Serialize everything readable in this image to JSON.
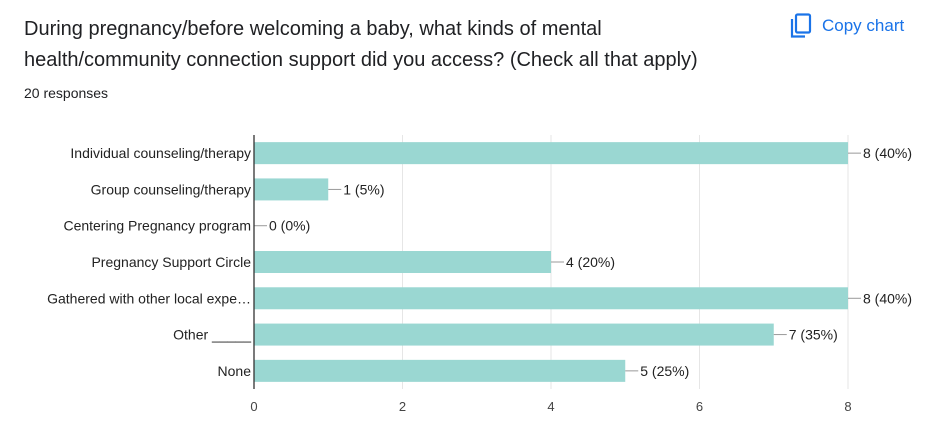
{
  "question": "During pregnancy/before welcoming a baby, what kinds of mental health/community connection support did you access? (Check all that apply)",
  "responses": "20 responses",
  "copy_label": "Copy chart",
  "icons": {
    "copy": "copy-icon"
  },
  "colors": {
    "bar": "#9ad7d2",
    "accent": "#1a73e8",
    "grid": "#e6e6e6",
    "axis": "#333333"
  },
  "chart_data": {
    "type": "bar",
    "orientation": "horizontal",
    "categories": [
      "Individual counseling/therapy",
      "Group counseling/therapy",
      "Centering Pregnancy program",
      "Pregnancy Support Circle",
      "Gathered with other local expe…",
      "Other _____",
      "None"
    ],
    "values": [
      8,
      1,
      0,
      4,
      8,
      7,
      5
    ],
    "value_labels": [
      "8 (40%)",
      "1 (5%)",
      "0 (0%)",
      "4 (20%)",
      "8 (40%)",
      "7 (35%)",
      "5 (25%)"
    ],
    "xlim": [
      0,
      8
    ],
    "xticks": [
      0,
      2,
      4,
      6,
      8
    ],
    "grid": true,
    "legend": "none"
  }
}
